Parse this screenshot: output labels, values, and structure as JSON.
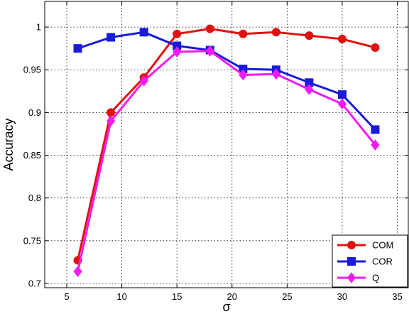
{
  "chart_data": {
    "type": "line",
    "title": "",
    "xlabel": "σ",
    "ylabel": "Accuracy",
    "xlim": [
      3,
      36
    ],
    "ylim": [
      0.695,
      1.03
    ],
    "xticks": [
      5,
      10,
      15,
      20,
      25,
      30,
      35
    ],
    "yticks": [
      0.7,
      0.75,
      0.8,
      0.85,
      0.9,
      0.95,
      1
    ],
    "xtick_labels": [
      "5",
      "10",
      "15",
      "20",
      "25",
      "30",
      "35"
    ],
    "ytick_labels": [
      "0.7",
      "0.75",
      "0.8",
      "0.85",
      "0.9",
      "0.95",
      "1"
    ],
    "grid": true,
    "legend_position": "bottom-right",
    "x": [
      6,
      9,
      12,
      15,
      18,
      21,
      24,
      27,
      30,
      33
    ],
    "series": [
      {
        "name": "COM",
        "color": "#e0120f",
        "marker": "circle",
        "values": [
          0.727,
          0.9,
          0.941,
          0.992,
          0.998,
          0.992,
          0.994,
          0.99,
          0.986,
          0.976
        ]
      },
      {
        "name": "COR",
        "color": "#1a1adb",
        "marker": "square",
        "values": [
          0.975,
          0.988,
          0.994,
          0.978,
          0.973,
          0.951,
          0.95,
          0.935,
          0.921,
          0.88
        ]
      },
      {
        "name": "Q",
        "color": "#f21bf2",
        "marker": "diamond",
        "values": [
          0.714,
          0.89,
          0.937,
          0.971,
          0.972,
          0.944,
          0.945,
          0.927,
          0.91,
          0.862
        ]
      }
    ]
  }
}
